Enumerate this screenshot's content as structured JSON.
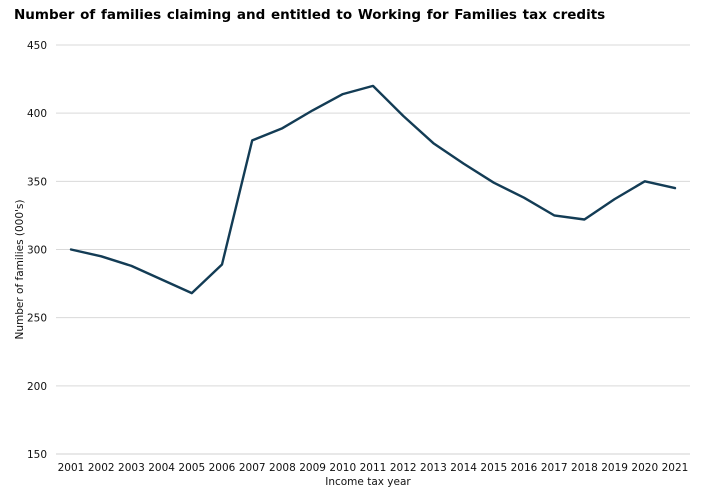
{
  "chart_data": {
    "type": "line",
    "title": "Number of families  claiming  and entitled  to Working  for Families  tax credits",
    "xlabel": "Income  tax year",
    "ylabel": "Number  of families  (000's)",
    "categories": [
      "2001",
      "2002",
      "2003",
      "2004",
      "2005",
      "2006",
      "2007",
      "2008",
      "2009",
      "2010",
      "2011",
      "2012",
      "2013",
      "2014",
      "2015",
      "2016",
      "2017",
      "2018",
      "2019",
      "2020",
      "2021"
    ],
    "series": [
      {
        "name": "Number of families",
        "values": [
          300,
          295,
          288,
          278,
          268,
          289,
          380,
          389,
          402,
          414,
          420,
          398,
          378,
          363,
          349,
          338,
          325,
          322,
          337,
          350,
          345
        ]
      }
    ],
    "ylim": [
      150,
      450
    ],
    "yticks": [
      150,
      200,
      250,
      300,
      350,
      400,
      450
    ],
    "grid": true,
    "line_color": "#133C55"
  }
}
